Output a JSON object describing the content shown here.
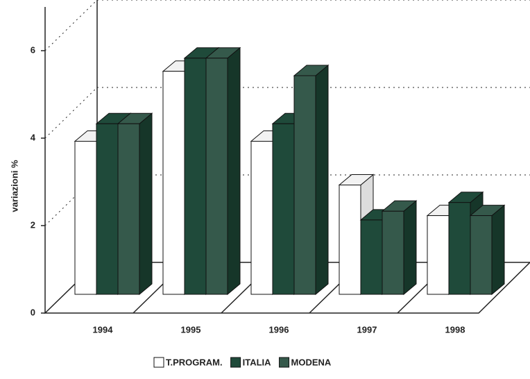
{
  "chart_data": {
    "type": "bar3d",
    "y_label": "variazioni %",
    "categories": [
      "1994",
      "1995",
      "1996",
      "1997",
      "1998"
    ],
    "series": [
      {
        "name": "T.PROGRAM.",
        "color": "#ffffff",
        "values": [
          3.5,
          5.1,
          3.5,
          2.5,
          1.8
        ]
      },
      {
        "name": "ITALIA",
        "color": "#1f4a3a",
        "values": [
          3.9,
          5.4,
          3.9,
          1.7,
          2.1
        ]
      },
      {
        "name": "MODENA",
        "color": "#35594b",
        "values": [
          3.9,
          5.4,
          5.0,
          1.9,
          1.8
        ]
      }
    ],
    "ylim": [
      0,
      7
    ],
    "yticks": [
      0,
      2,
      4,
      6
    ],
    "grid": true
  }
}
